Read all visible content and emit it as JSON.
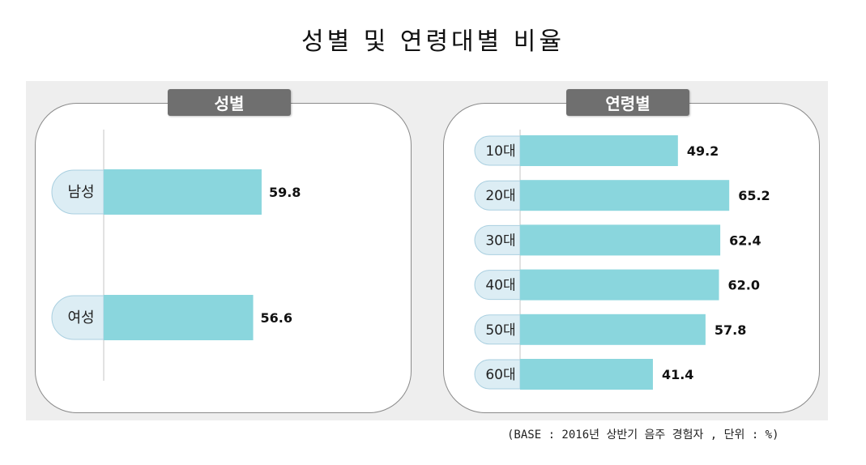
{
  "title": "성별 및 연령대별 비율",
  "footnote": "(BASE : 2016년 상반기 음주 경험자 , 단위 : %)",
  "colors": {
    "bar": "#8ad6dd",
    "label_pill": "#dcedf4",
    "label_pill_border": "#a9cfe0",
    "tab": "#6f6f6f"
  },
  "chart_data": [
    {
      "type": "bar",
      "orientation": "horizontal",
      "title": "성별",
      "categories": [
        "남성",
        "여성"
      ],
      "values": [
        59.8,
        56.6
      ],
      "value_labels": [
        "59.8",
        "56.6"
      ]
    },
    {
      "type": "bar",
      "orientation": "horizontal",
      "title": "연령별",
      "categories": [
        "10대",
        "20대",
        "30대",
        "40대",
        "50대",
        "60대"
      ],
      "values": [
        49.2,
        65.2,
        62.4,
        62.0,
        57.8,
        41.4
      ],
      "value_labels": [
        "49.2",
        "65.2",
        "62.4",
        "62.0",
        "57.8",
        "41.4"
      ]
    }
  ]
}
